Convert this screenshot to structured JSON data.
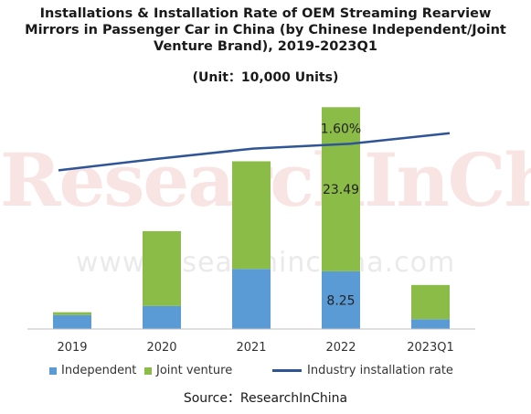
{
  "title_lines": [
    "Installations & Installation Rate of OEM Streaming Rearview",
    "Mirrors in Passenger Car in China (by Chinese Independent/Joint",
    "Venture Brand), 2019-2023Q1"
  ],
  "unit": "(Unit：10,000 Units)",
  "source": "Source：ResearchInChina",
  "watermark": {
    "main": "ResearchInChina",
    "url": "www.researchinchina.com"
  },
  "colors": {
    "independent": "#5b9bd5",
    "joint_venture": "#8cbc48",
    "rate_line": "#2f5597"
  },
  "chart_data": {
    "type": "bar",
    "stacked": true,
    "categories": [
      "2019",
      "2020",
      "2021",
      "2022",
      "2023Q1"
    ],
    "series": [
      {
        "name": "Independent",
        "values": [
          2.0,
          3.3,
          8.6,
          8.25,
          1.4
        ]
      },
      {
        "name": "Joint venture",
        "values": [
          0.4,
          10.7,
          15.4,
          23.49,
          4.9
        ]
      }
    ],
    "line_series": {
      "name": "Industry installation rate",
      "values": [
        0.94,
        1.22,
        1.48,
        1.6,
        1.86
      ],
      "unit": "%"
    },
    "data_labels": [
      {
        "series": "Joint venture",
        "category": "2022",
        "text": "23.49"
      },
      {
        "series": "Independent",
        "category": "2022",
        "text": "8.25"
      },
      {
        "series": "Industry installation rate",
        "category": "2022",
        "text": "1.60%"
      }
    ],
    "ylim": [
      0,
      34
    ],
    "y2lim": [
      -3.0,
      2.9
    ],
    "legend_position": "bottom",
    "grid": false
  }
}
